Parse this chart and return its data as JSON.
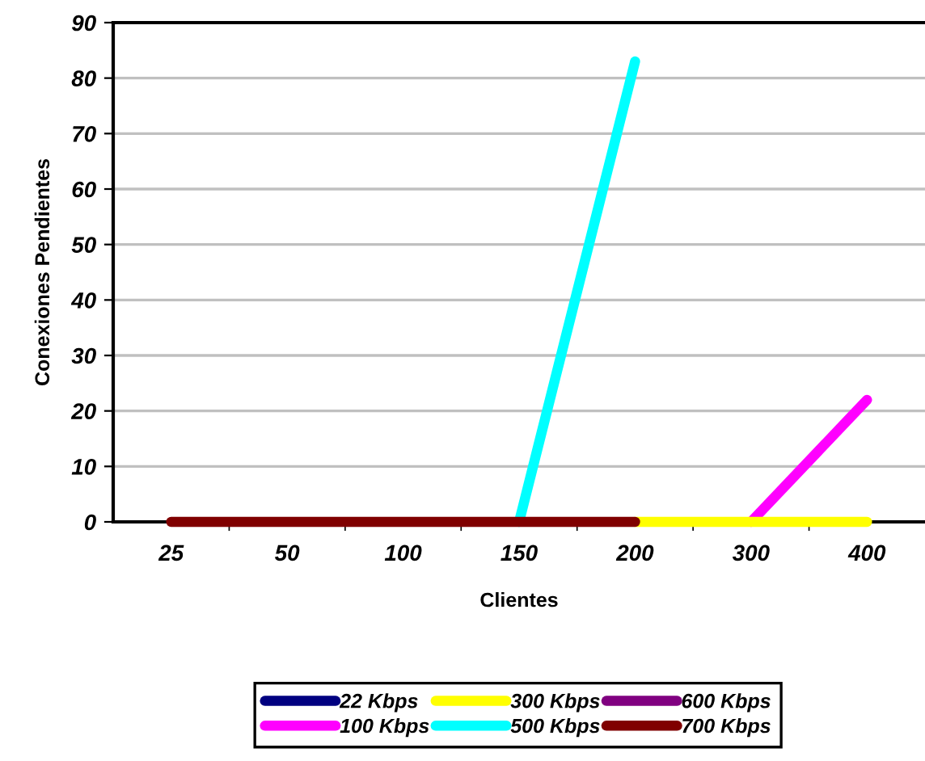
{
  "chart_data": {
    "type": "line",
    "xlabel": "Clientes",
    "ylabel": "Conexiones Pendientes",
    "categories": [
      "25",
      "50",
      "100",
      "150",
      "200",
      "300",
      "400"
    ],
    "series": [
      {
        "name": "22 Kbps",
        "color": "#000080",
        "values": [
          null,
          null,
          null,
          null,
          null,
          null,
          null
        ]
      },
      {
        "name": "100 Kbps",
        "color": "#ff00ff",
        "values": [
          null,
          null,
          null,
          null,
          null,
          0,
          22
        ]
      },
      {
        "name": "300 Kbps",
        "color": "#ffff00",
        "values": [
          null,
          null,
          null,
          null,
          0,
          0,
          0
        ]
      },
      {
        "name": "500 Kbps",
        "color": "#00ffff",
        "values": [
          null,
          null,
          null,
          0,
          83,
          null,
          null
        ]
      },
      {
        "name": "600 Kbps",
        "color": "#800080",
        "values": [
          null,
          null,
          null,
          null,
          null,
          null,
          null
        ]
      },
      {
        "name": "700 Kbps",
        "color": "#800000",
        "values": [
          0,
          0,
          0,
          0,
          0,
          null,
          null
        ]
      }
    ],
    "ylim": [
      0,
      90
    ],
    "yticks": [
      0,
      10,
      20,
      30,
      40,
      50,
      60,
      70,
      80,
      90
    ],
    "grid": "y",
    "legend": "bottom",
    "marker": "none",
    "line_style": "solid"
  }
}
